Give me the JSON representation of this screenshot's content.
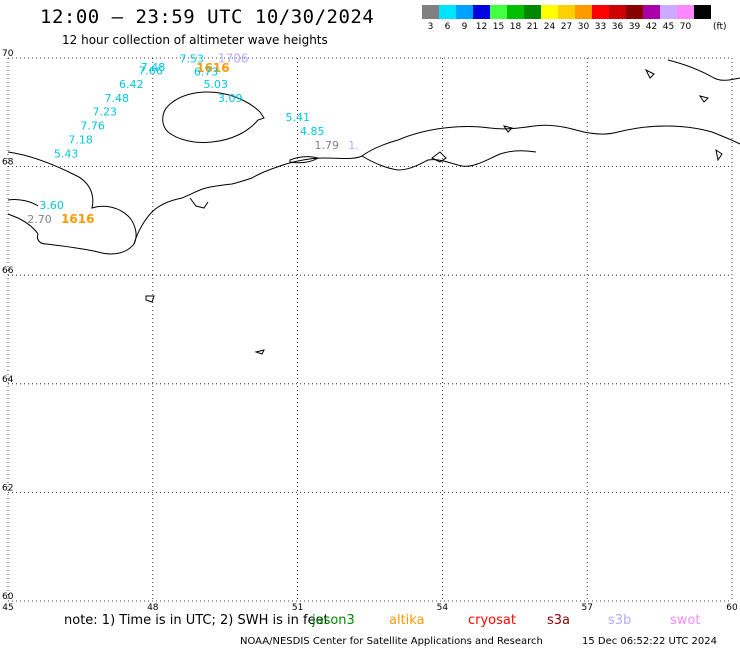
{
  "header": {
    "title": "12:00 – 23:59 UTC 10/30/2024",
    "subtitle": "12 hour collection of altimeter wave heights"
  },
  "legend": {
    "unit": "(ft)",
    "items": [
      {
        "label": "3",
        "color": "#808080"
      },
      {
        "label": "6",
        "color": "#00e5ff"
      },
      {
        "label": "9",
        "color": "#00a2ff"
      },
      {
        "label": "12",
        "color": "#0000e0"
      },
      {
        "label": "15",
        "color": "#44ff44"
      },
      {
        "label": "18",
        "color": "#00c000"
      },
      {
        "label": "21",
        "color": "#008800"
      },
      {
        "label": "24",
        "color": "#ffff00"
      },
      {
        "label": "27",
        "color": "#ffd000"
      },
      {
        "label": "30",
        "color": "#ff9900"
      },
      {
        "label": "33",
        "color": "#ff0000"
      },
      {
        "label": "36",
        "color": "#cc0000"
      },
      {
        "label": "39",
        "color": "#880000"
      },
      {
        "label": "42",
        "color": "#aa00aa"
      },
      {
        "label": "45",
        "color": "#ccaaff"
      },
      {
        "label": "70",
        "color": "#ff88ff"
      },
      {
        "label": "",
        "color": "#000000"
      }
    ]
  },
  "map": {
    "lon_range": [
      45,
      60
    ],
    "lat_range": [
      60,
      70
    ],
    "lon_ticks": [
      "45",
      "48",
      "51",
      "54",
      "57",
      "60"
    ],
    "lat_ticks": [
      "70",
      "68",
      "66",
      "64",
      "62",
      "60"
    ],
    "grid": "dotted",
    "observations": [
      {
        "text": "7.53",
        "lon": 48.55,
        "lat": 69.92,
        "color": "#00c8e0"
      },
      {
        "text": "1706",
        "lon": 49.35,
        "lat": 69.92,
        "color": "#b8a8ff"
      },
      {
        "text": "7.48",
        "lon": 47.75,
        "lat": 69.76,
        "color": "#00c8e0"
      },
      {
        "text": "7.66",
        "lon": 47.7,
        "lat": 69.7,
        "color": "#00c8e0"
      },
      {
        "text": "1616",
        "lon": 48.9,
        "lat": 69.74,
        "color": "#ff9900"
      },
      {
        "text": "6.73",
        "lon": 48.85,
        "lat": 69.68,
        "color": "#00c8e0"
      },
      {
        "text": "6.42",
        "lon": 47.3,
        "lat": 69.45,
        "color": "#00c8e0"
      },
      {
        "text": "5.03",
        "lon": 49.05,
        "lat": 69.45,
        "color": "#00c8e0"
      },
      {
        "text": "7.48",
        "lon": 47.0,
        "lat": 69.19,
        "color": "#00c8e0"
      },
      {
        "text": "3.09",
        "lon": 49.35,
        "lat": 69.19,
        "color": "#00c8e0"
      },
      {
        "text": "7.23",
        "lon": 46.75,
        "lat": 68.94,
        "color": "#00c8e0"
      },
      {
        "text": "5.41",
        "lon": 50.75,
        "lat": 68.84,
        "color": "#00c8e0"
      },
      {
        "text": "7.76",
        "lon": 46.5,
        "lat": 68.68,
        "color": "#00c8e0"
      },
      {
        "text": "4.85",
        "lon": 51.05,
        "lat": 68.58,
        "color": "#00c8e0"
      },
      {
        "text": "7.18",
        "lon": 46.25,
        "lat": 68.43,
        "color": "#00c8e0"
      },
      {
        "text": "1.79",
        "lon": 51.35,
        "lat": 68.32,
        "color": "#808080"
      },
      {
        "text": "1.",
        "lon": 52.05,
        "lat": 68.32,
        "color": "#b8a8ff"
      },
      {
        "text": "5.43",
        "lon": 45.95,
        "lat": 68.17,
        "color": "#00c8e0"
      },
      {
        "text": "3.60",
        "lon": 45.65,
        "lat": 67.22,
        "color": "#00c8e0"
      },
      {
        "text": "2.70",
        "lon": 45.4,
        "lat": 66.96,
        "color": "#808080"
      },
      {
        "text": "1616",
        "lon": 46.1,
        "lat": 66.96,
        "color": "#ff9900"
      }
    ]
  },
  "footer": {
    "note": "note:  1) Time is in UTC; 2) SWH is in feet",
    "satellites": [
      {
        "name": "jason3",
        "color": "#008800"
      },
      {
        "name": "altika",
        "color": "#ff9900"
      },
      {
        "name": "cryosat",
        "color": "#ff0000"
      },
      {
        "name": "s3a",
        "color": "#880000"
      },
      {
        "name": "s3b",
        "color": "#b8a8ff"
      },
      {
        "name": "swot",
        "color": "#ff88ff"
      }
    ],
    "credit": "NOAA/NESDIS Center for Satellite Applications and Research",
    "generated": "15 Dec 06:52:22 UTC 2024"
  }
}
